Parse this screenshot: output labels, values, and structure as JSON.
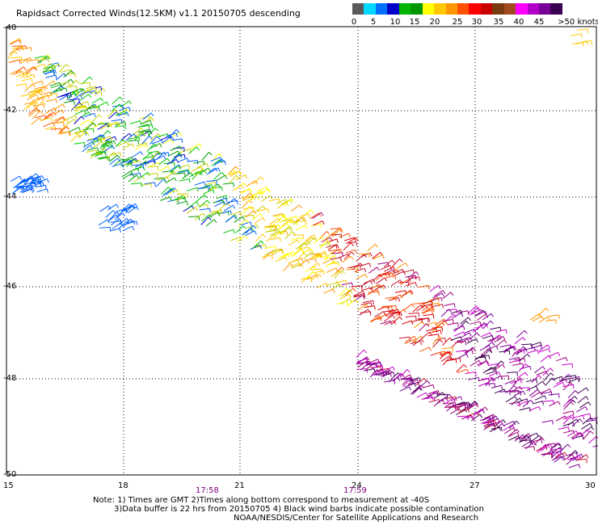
{
  "title": "Rapidsact Corrected Winds(12.5KM) v1.1 20150705 descending",
  "legend": {
    "labels": [
      "0",
      "5",
      "10",
      "15",
      "20",
      "25",
      "30",
      "35",
      "40",
      "45",
      ">50 knots"
    ],
    "colors": [
      "#5a5a5a",
      "#00d8ff",
      "#0070ff",
      "#0000c8",
      "#00b400",
      "#009600",
      "#ffff00",
      "#ffc800",
      "#ff9600",
      "#ff5000",
      "#ff0000",
      "#c80000",
      "#7a3a10",
      "#a04a20",
      "#ff00ff",
      "#b000c8",
      "#780096",
      "#3c0050"
    ]
  },
  "map": {
    "lon_ticks": [
      "15",
      "18",
      "21",
      "24",
      "27",
      "30"
    ],
    "lat_ticks": [
      "-40",
      "-42",
      "-44",
      "-46",
      "-48",
      "-50"
    ],
    "time_labels": [
      "17:58",
      "17:59"
    ]
  },
  "notes": {
    "line1": "Note: 1) Times are GMT 2)Times along bottom correspond to measurement at -40S",
    "line2": "3)Data buffer is 22 hrs from 20150705 4) Black wind barbs indicate possible contamination",
    "line3": "NOAA/NESDIS/Center for Satellite Applications and Research"
  },
  "colors": {
    "time_label": "#800080",
    "grid": "#000000"
  }
}
